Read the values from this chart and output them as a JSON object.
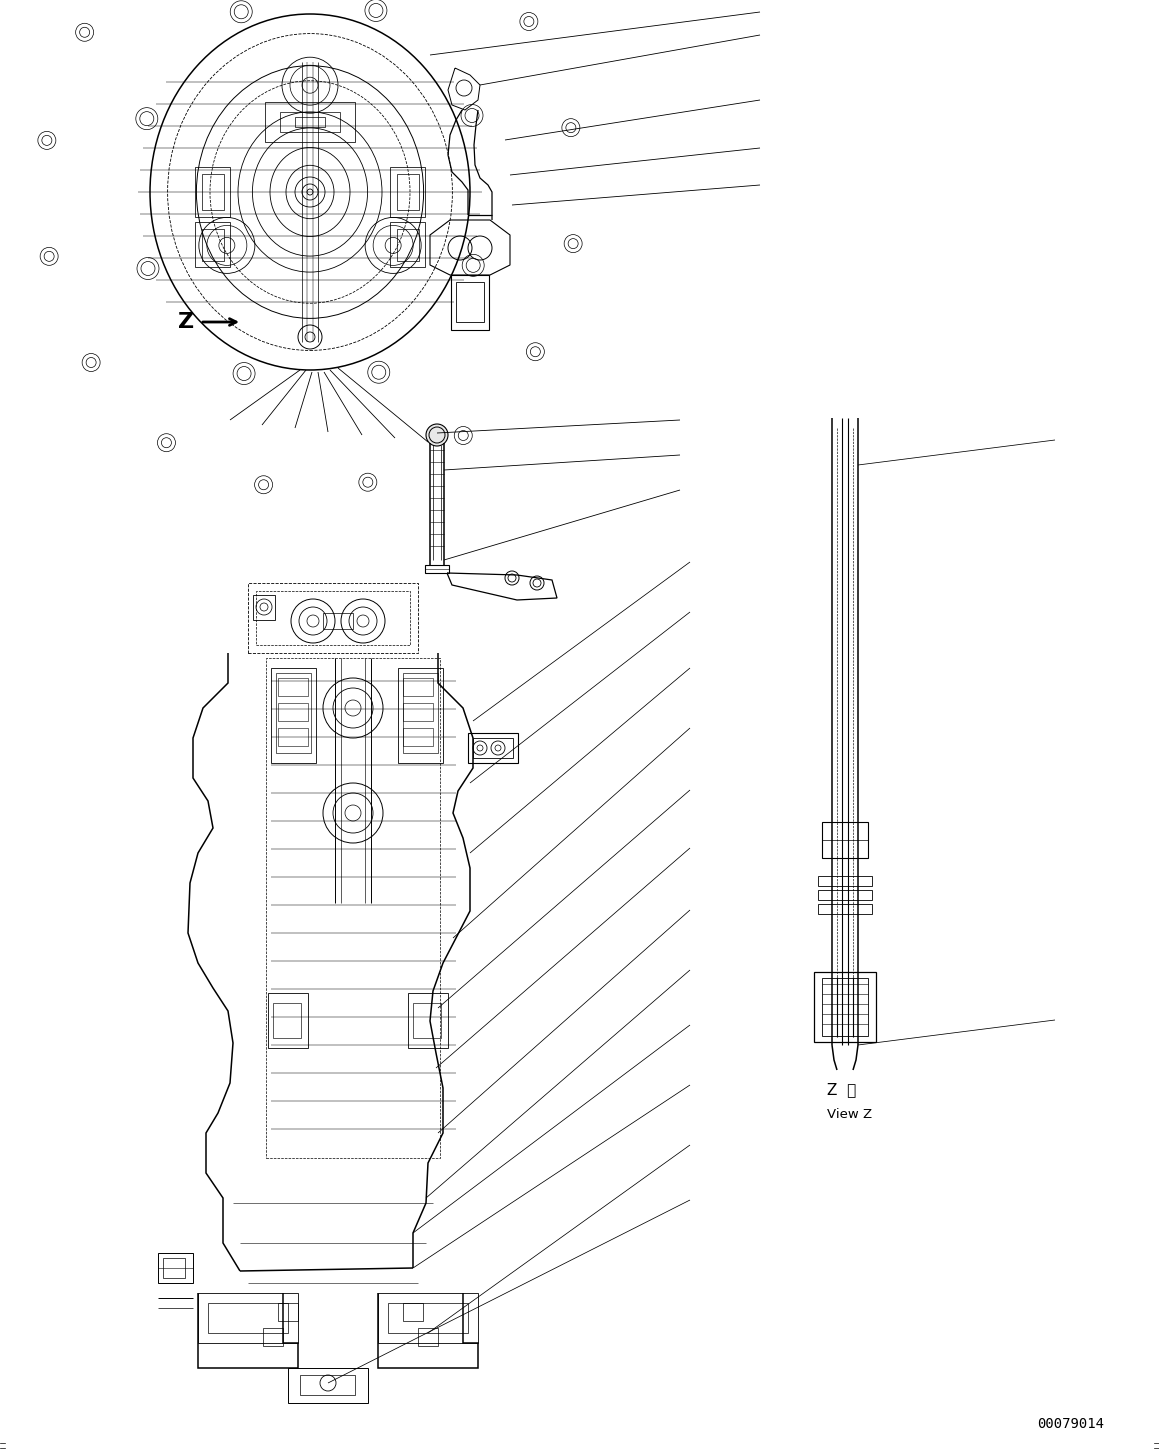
{
  "background_color": "#ffffff",
  "page_number": "00079014",
  "view_z_label_line1": "Z  視",
  "view_z_label_line2": "View Z",
  "z_label": "Z",
  "fig_width": 11.59,
  "fig_height": 14.53,
  "dpi": 100,
  "line_color": "#000000",
  "lw": 0.7,
  "lwt": 1.1
}
